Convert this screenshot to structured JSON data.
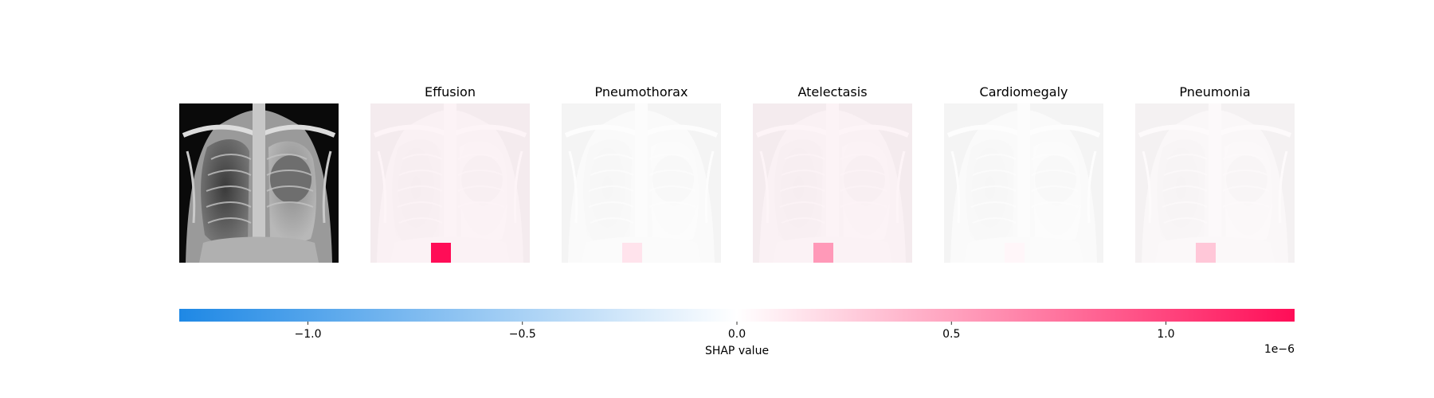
{
  "chart_data": {
    "type": "heatmap",
    "original_image": {
      "label": "input-image"
    },
    "panels": [
      {
        "title": "Effusion",
        "highlight_value": 1.3e-06,
        "background_value": 1e-07
      },
      {
        "title": "Pneumothorax",
        "highlight_value": 1.5e-07,
        "background_value": 0
      },
      {
        "title": "Atelectasis",
        "highlight_value": 5.5e-07,
        "background_value": 1e-07
      },
      {
        "title": "Cardiomegaly",
        "highlight_value": 5e-08,
        "background_value": 0
      },
      {
        "title": "Pneumonia",
        "highlight_value": 3e-07,
        "background_value": 3e-08
      }
    ],
    "colorbar": {
      "label": "SHAP value",
      "range": [
        -1.3e-06,
        1.3e-06
      ],
      "ticks": [
        -1e-06,
        -5e-07,
        0,
        5e-07,
        1e-06
      ],
      "tick_labels": [
        "−1.0",
        "−0.5",
        "0.0",
        "0.5",
        "1.0"
      ],
      "offset_label": "1e−6",
      "colors": {
        "negative": "#1e88e5",
        "zero": "#ffffff",
        "positive": "#ff0d57"
      }
    }
  }
}
